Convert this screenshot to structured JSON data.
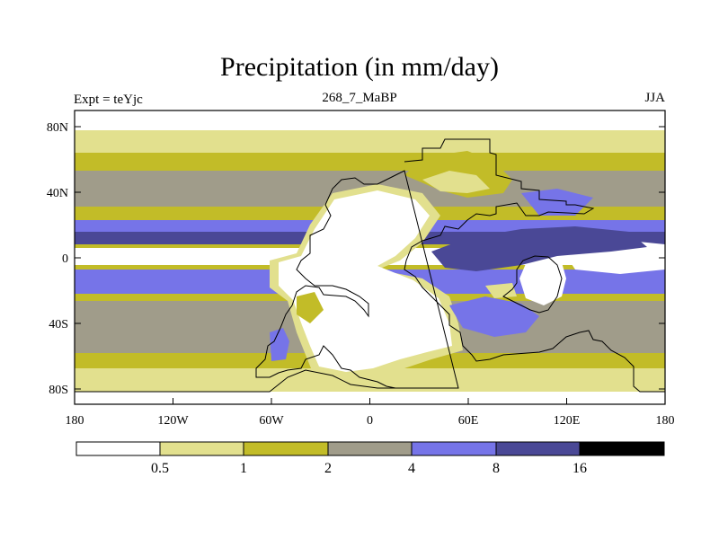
{
  "title": "Precipitation (in mm/day)",
  "subtitle_left": "Expt = teYjc",
  "subtitle_center": "268_7_MaBP",
  "subtitle_right": "JJA",
  "axes": {
    "x_ticks": [
      "180",
      "120W",
      "60W",
      "0",
      "60E",
      "120E",
      "180"
    ],
    "y_ticks": [
      "80N",
      "40N",
      "0",
      "40S",
      "80S"
    ]
  },
  "colorbar": {
    "labels": [
      "0.5",
      "1",
      "2",
      "4",
      "8",
      "16"
    ],
    "colors": [
      "#ffffff",
      "#e2e08e",
      "#c2bc28",
      "#a09c8a",
      "#7674e8",
      "#4a4896",
      "#000000"
    ]
  }
}
